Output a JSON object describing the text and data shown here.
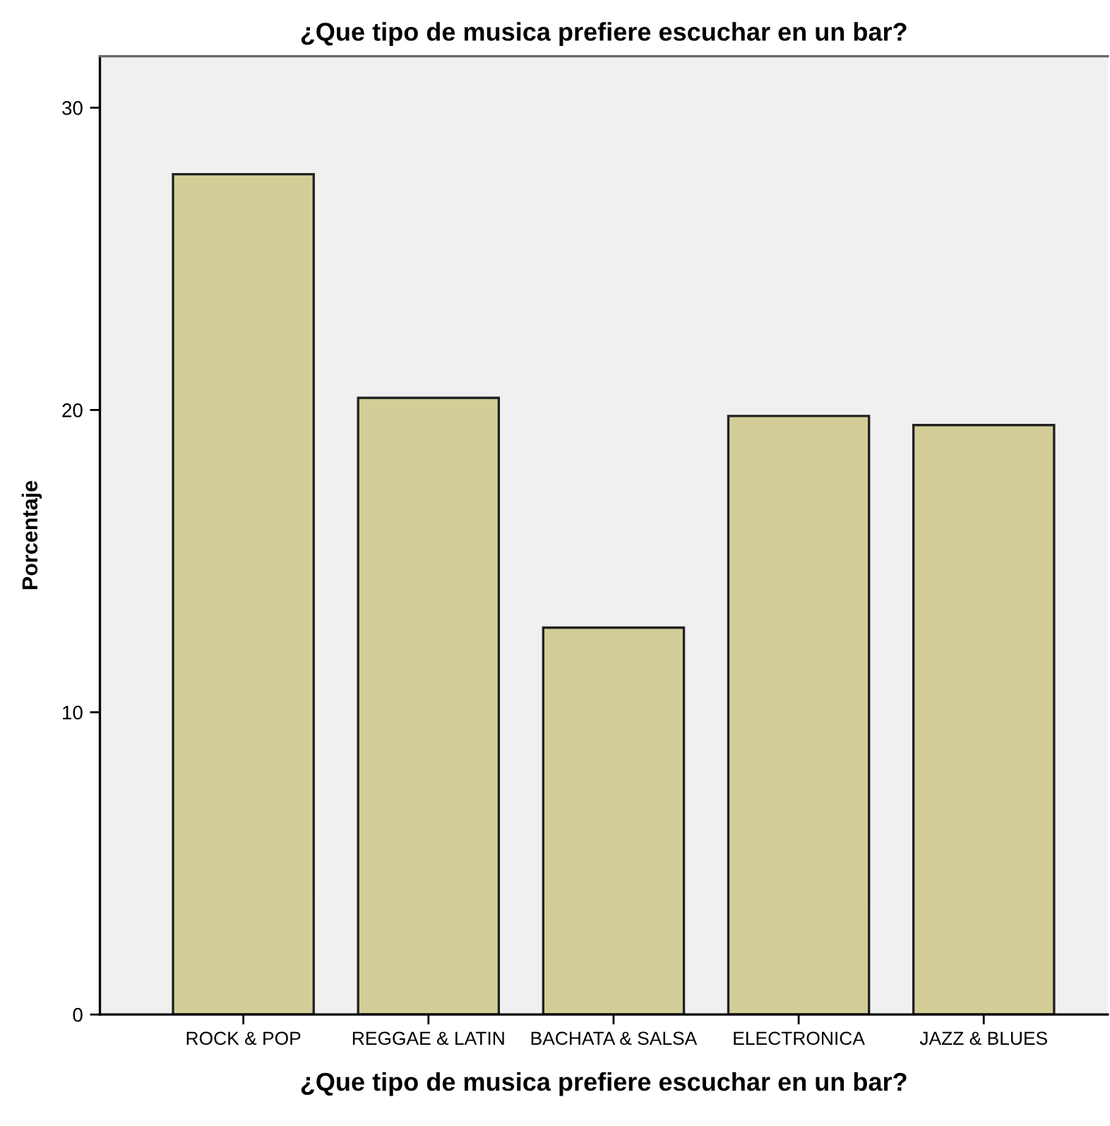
{
  "chart_data": {
    "type": "bar",
    "title": "¿Que tipo de musica prefiere escuchar en un bar?",
    "xlabel": "¿Que tipo de musica prefiere escuchar en un bar?",
    "ylabel": "Porcentaje",
    "categories": [
      "ROCK & POP",
      "REGGAE & LATIN",
      "BACHATA & SALSA",
      "ELECTRONICA",
      "JAZZ & BLUES"
    ],
    "values": [
      27.8,
      20.4,
      12.8,
      19.8,
      19.5
    ],
    "color": "#d3ce97",
    "ylim": [
      0,
      31.7
    ],
    "yticks": [
      0,
      10,
      20,
      30
    ],
    "grid": false,
    "legend": false
  }
}
